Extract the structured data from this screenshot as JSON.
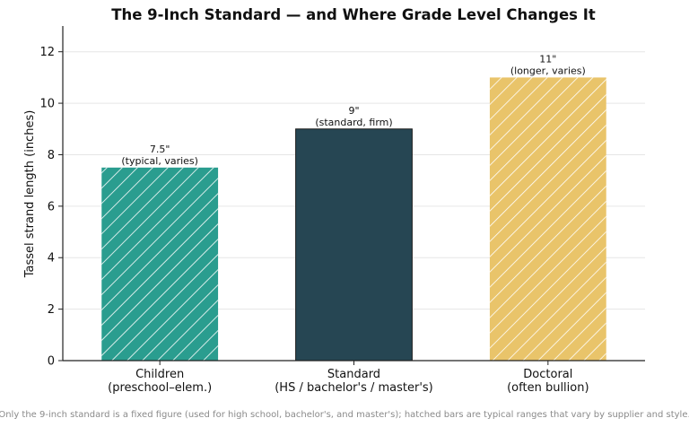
{
  "chart_data": {
    "type": "bar",
    "title": "The 9-Inch Standard — and Where Grade Level Changes It",
    "xlabel": "",
    "ylabel": "Tassel strand length (inches)",
    "ylim": [
      0,
      13
    ],
    "yticks": [
      0,
      2,
      4,
      6,
      8,
      10,
      12
    ],
    "grid": "horizontal",
    "categories": [
      [
        "Children",
        "(preschool–elem.)"
      ],
      [
        "Standard",
        "(HS / bachelor's / master's)"
      ],
      [
        "Doctoral",
        "(often bullion)"
      ]
    ],
    "values": [
      7.5,
      9,
      11
    ],
    "colors": [
      "#2a9d8f",
      "#264653",
      "#e9c46a"
    ],
    "hatched": [
      true,
      false,
      true
    ],
    "data_labels": [
      [
        "7.5\"",
        "(typical, varies)"
      ],
      [
        "9\"",
        "(standard, firm)"
      ],
      [
        "11\"",
        "(longer, varies)"
      ]
    ]
  },
  "caption": "Only the 9-inch standard is a fixed figure (used for high school, bachelor's, and master's); hatched bars are typical ranges that vary by supplier and style."
}
